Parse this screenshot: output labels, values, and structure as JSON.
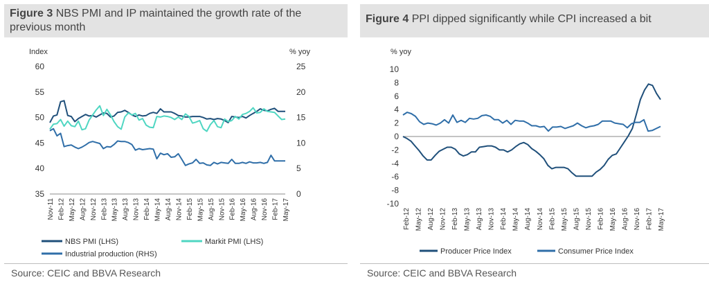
{
  "colors": {
    "dark": "#1f4f7a",
    "teal": "#4fd6c2",
    "mid": "#2f6ea8"
  },
  "source_label": "Source:  CEIC and BBVA Research",
  "figures": [
    {
      "number": "Figure 3",
      "title": "NBS PMI and IP maintained the growth rate of the previous month"
    },
    {
      "number": "Figure 4",
      "title": "PPI dipped significantly while CPI increased a bit"
    }
  ],
  "chart_data": [
    {
      "type": "line",
      "title": "NBS PMI and IP maintained the growth rate of the previous month",
      "lhs_label": "Index",
      "rhs_label": "% yoy",
      "ylim_left": [
        35,
        60
      ],
      "ylim_right": [
        0,
        25
      ],
      "left_ticks": [
        "60",
        "55",
        "50",
        "45",
        "40",
        "35"
      ],
      "right_ticks": [
        "25",
        "20",
        "15",
        "10",
        "5",
        "0"
      ],
      "x_tick_labels": [
        "Nov-11",
        "Feb-12",
        "May-12",
        "Aug-12",
        "Nov-12",
        "Feb-13",
        "May-13",
        "Aug-13",
        "Nov-13",
        "Feb-14",
        "May-14",
        "Aug-14",
        "Nov-14",
        "Feb-15",
        "May-15",
        "Aug-15",
        "Nov-15",
        "Feb-16",
        "May-16",
        "Aug-16",
        "Nov-16",
        "Feb-17",
        "May-17"
      ],
      "legend": [
        "NBS PMI (LHS)",
        "Markit PMI (LHS)",
        "Industrial production (RHS)"
      ],
      "series": [
        {
          "name": "NBS PMI (LHS)",
          "axis": "left",
          "color_key": "dark",
          "values": [
            49.0,
            50.3,
            50.5,
            53.1,
            53.3,
            50.4,
            50.2,
            49.2,
            49.8,
            50.2,
            50.6,
            50.3,
            50.4,
            50.1,
            50.5,
            50.9,
            50.8,
            50.1,
            50.3,
            51.0,
            51.1,
            51.4,
            51.0,
            50.5,
            50.2,
            50.5,
            50.3,
            50.4,
            50.8,
            51.0,
            50.8,
            51.7,
            51.1,
            51.1,
            51.1,
            50.8,
            50.4,
            50.3,
            50.1,
            50.1,
            50.2,
            50.2,
            50.2,
            50.0,
            49.7,
            49.8,
            49.6,
            49.8,
            49.7,
            49.4,
            49.0,
            50.2,
            50.1,
            50.0,
            50.2,
            49.9,
            50.4,
            50.8,
            51.2,
            51.7,
            51.4,
            51.3,
            51.6,
            51.8,
            51.2,
            51.2,
            51.2
          ]
        },
        {
          "name": "Markit PMI (LHS)",
          "axis": "left",
          "color_key": "teal",
          "values": [
            47.7,
            48.7,
            48.8,
            49.6,
            48.3,
            49.3,
            48.4,
            48.2,
            49.3,
            47.6,
            47.8,
            49.5,
            50.5,
            51.5,
            52.3,
            50.4,
            51.6,
            50.5,
            49.2,
            48.2,
            47.7,
            50.1,
            50.9,
            50.5,
            50.8,
            49.5,
            49.8,
            48.5,
            48.1,
            48.0,
            50.2,
            50.1,
            50.3,
            50.2,
            50.0,
            49.6,
            50.1,
            49.6,
            50.7,
            50.2,
            48.9,
            49.1,
            49.4,
            47.8,
            47.3,
            48.6,
            49.4,
            48.2,
            48.0,
            49.7,
            49.2,
            49.4,
            50.2,
            49.7,
            50.6,
            50.8,
            51.2,
            51.9,
            50.9,
            51.0,
            51.7,
            51.2,
            51.1,
            51.0,
            50.3,
            49.6,
            49.7
          ]
        },
        {
          "name": "Industrial production (RHS)",
          "axis": "right",
          "color_key": "mid",
          "values": [
            12.4,
            12.8,
            11.4,
            11.9,
            9.3,
            9.5,
            9.6,
            9.2,
            8.9,
            9.2,
            9.6,
            10.1,
            10.3,
            10.1,
            9.9,
            8.9,
            9.3,
            9.2,
            9.7,
            10.4,
            10.3,
            10.3,
            10.1,
            9.7,
            8.6,
            8.9,
            8.7,
            8.8,
            8.9,
            8.8,
            6.9,
            8.0,
            7.7,
            7.9,
            7.2,
            7.3,
            7.9,
            6.8,
            5.6,
            5.9,
            6.1,
            6.8,
            6.0,
            6.1,
            5.7,
            5.6,
            6.2,
            5.9,
            6.2,
            6.1,
            6.0,
            6.8,
            6.0,
            6.0,
            6.2,
            6.0,
            6.3,
            6.1,
            6.1,
            6.2,
            6.0,
            6.2,
            7.6,
            6.5,
            6.5,
            6.5,
            6.5
          ]
        }
      ]
    },
    {
      "type": "line",
      "title": "PPI dipped significantly while CPI increased a bit",
      "ylabel": "% yoy",
      "ylim": [
        -10,
        10
      ],
      "y_ticks": [
        "10",
        "8",
        "6",
        "4",
        "2",
        "0",
        "-2",
        "-4",
        "-6",
        "-8",
        "-10"
      ],
      "x_tick_labels": [
        "Feb-12",
        "May-12",
        "Aug-12",
        "Nov-12",
        "Feb-13",
        "May-13",
        "Aug-13",
        "Nov-13",
        "Feb-14",
        "May-14",
        "Aug-14",
        "Nov-14",
        "Feb-15",
        "May-15",
        "Aug-15",
        "Nov-15",
        "Feb-16",
        "May-16",
        "Aug-16",
        "Nov-16",
        "Feb-17",
        "May-17"
      ],
      "legend": [
        "Producer Price Index",
        "Consumer Price Index"
      ],
      "series": [
        {
          "name": "Producer Price Index",
          "color_key": "dark",
          "values": [
            0.0,
            -0.3,
            -0.7,
            -1.4,
            -2.1,
            -2.9,
            -3.5,
            -3.5,
            -2.8,
            -2.2,
            -1.9,
            -1.6,
            -1.6,
            -1.9,
            -2.6,
            -2.9,
            -2.7,
            -2.3,
            -2.3,
            -1.6,
            -1.5,
            -1.4,
            -1.4,
            -1.6,
            -2.0,
            -2.0,
            -2.3,
            -2.0,
            -1.5,
            -1.1,
            -0.9,
            -1.2,
            -1.8,
            -2.2,
            -2.7,
            -3.3,
            -4.3,
            -4.8,
            -4.6,
            -4.6,
            -4.6,
            -4.8,
            -5.4,
            -5.9,
            -5.9,
            -5.9,
            -5.9,
            -5.9,
            -5.3,
            -4.9,
            -4.3,
            -3.4,
            -2.8,
            -2.6,
            -1.7,
            -0.8,
            0.1,
            1.2,
            3.3,
            5.5,
            6.9,
            7.8,
            7.6,
            6.4,
            5.5
          ]
        },
        {
          "name": "Consumer Price Index",
          "color_key": "mid",
          "values": [
            3.2,
            3.6,
            3.4,
            3.0,
            2.2,
            1.8,
            2.0,
            1.9,
            1.7,
            2.0,
            2.5,
            2.0,
            3.2,
            2.1,
            2.4,
            2.1,
            2.7,
            2.6,
            2.7,
            3.1,
            3.2,
            3.0,
            2.5,
            2.5,
            2.0,
            2.4,
            1.8,
            2.4,
            2.3,
            2.3,
            2.0,
            1.6,
            1.6,
            1.4,
            1.5,
            0.8,
            1.4,
            1.4,
            1.5,
            1.2,
            1.4,
            1.6,
            2.0,
            1.6,
            1.3,
            1.5,
            1.6,
            1.8,
            2.3,
            2.3,
            2.3,
            2.0,
            1.9,
            1.8,
            1.3,
            1.9,
            2.1,
            2.1,
            2.5,
            0.8,
            0.9,
            1.2,
            1.5
          ]
        }
      ]
    }
  ]
}
